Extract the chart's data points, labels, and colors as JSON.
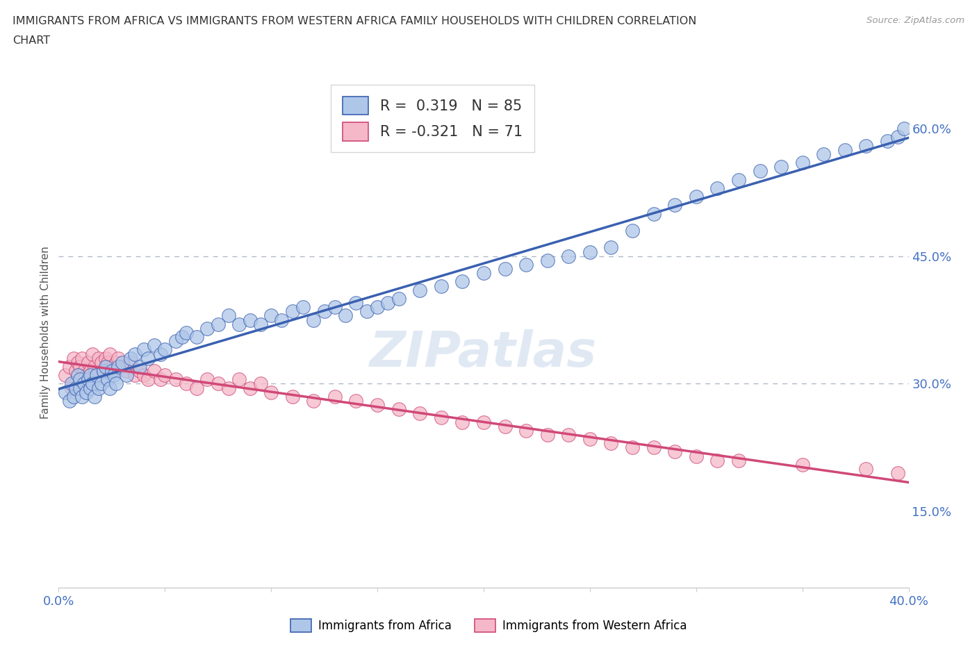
{
  "title_line1": "IMMIGRANTS FROM AFRICA VS IMMIGRANTS FROM WESTERN AFRICA FAMILY HOUSEHOLDS WITH CHILDREN CORRELATION",
  "title_line2": "CHART",
  "source": "Source: ZipAtlas.com",
  "ylabel": "Family Households with Children",
  "xlim": [
    0.0,
    0.4
  ],
  "ylim": [
    0.06,
    0.66
  ],
  "xticks": [
    0.0,
    0.05,
    0.1,
    0.15,
    0.2,
    0.25,
    0.3,
    0.35,
    0.4
  ],
  "ytick_positions": [
    0.15,
    0.3,
    0.45,
    0.6
  ],
  "ytick_labels": [
    "15.0%",
    "30.0%",
    "45.0%",
    "60.0%"
  ],
  "hlines": [
    0.45,
    0.3
  ],
  "series1_color": "#aec6e8",
  "series2_color": "#f4b8c8",
  "trend1_color": "#3a60b0",
  "trend2_color": "#d04878",
  "legend_r1": "R =  0.319   N = 85",
  "legend_r2": "R = -0.321   N = 71",
  "watermark": "ZIPatlas",
  "scatter1_x": [
    0.003,
    0.005,
    0.006,
    0.007,
    0.008,
    0.009,
    0.01,
    0.01,
    0.011,
    0.012,
    0.013,
    0.014,
    0.015,
    0.015,
    0.016,
    0.017,
    0.018,
    0.019,
    0.02,
    0.021,
    0.022,
    0.023,
    0.024,
    0.025,
    0.026,
    0.027,
    0.028,
    0.03,
    0.032,
    0.034,
    0.036,
    0.038,
    0.04,
    0.042,
    0.045,
    0.048,
    0.05,
    0.055,
    0.058,
    0.06,
    0.065,
    0.07,
    0.075,
    0.08,
    0.085,
    0.09,
    0.095,
    0.1,
    0.105,
    0.11,
    0.115,
    0.12,
    0.125,
    0.13,
    0.135,
    0.14,
    0.145,
    0.15,
    0.155,
    0.16,
    0.17,
    0.18,
    0.19,
    0.2,
    0.21,
    0.22,
    0.23,
    0.24,
    0.25,
    0.26,
    0.27,
    0.28,
    0.29,
    0.3,
    0.31,
    0.32,
    0.33,
    0.34,
    0.35,
    0.36,
    0.37,
    0.38,
    0.39,
    0.395,
    0.398
  ],
  "scatter1_y": [
    0.29,
    0.28,
    0.3,
    0.285,
    0.295,
    0.31,
    0.295,
    0.305,
    0.285,
    0.3,
    0.29,
    0.305,
    0.295,
    0.31,
    0.3,
    0.285,
    0.31,
    0.295,
    0.3,
    0.315,
    0.32,
    0.305,
    0.295,
    0.315,
    0.31,
    0.3,
    0.32,
    0.325,
    0.31,
    0.33,
    0.335,
    0.32,
    0.34,
    0.33,
    0.345,
    0.335,
    0.34,
    0.35,
    0.355,
    0.36,
    0.355,
    0.365,
    0.37,
    0.38,
    0.37,
    0.375,
    0.37,
    0.38,
    0.375,
    0.385,
    0.39,
    0.375,
    0.385,
    0.39,
    0.38,
    0.395,
    0.385,
    0.39,
    0.395,
    0.4,
    0.41,
    0.415,
    0.42,
    0.43,
    0.435,
    0.44,
    0.445,
    0.45,
    0.455,
    0.46,
    0.48,
    0.5,
    0.51,
    0.52,
    0.53,
    0.54,
    0.55,
    0.555,
    0.56,
    0.57,
    0.575,
    0.58,
    0.585,
    0.59,
    0.6
  ],
  "scatter2_x": [
    0.003,
    0.005,
    0.006,
    0.007,
    0.008,
    0.009,
    0.01,
    0.01,
    0.011,
    0.012,
    0.013,
    0.014,
    0.015,
    0.016,
    0.017,
    0.018,
    0.019,
    0.02,
    0.021,
    0.022,
    0.023,
    0.024,
    0.025,
    0.026,
    0.027,
    0.028,
    0.03,
    0.032,
    0.034,
    0.036,
    0.038,
    0.04,
    0.042,
    0.045,
    0.048,
    0.05,
    0.055,
    0.06,
    0.065,
    0.07,
    0.075,
    0.08,
    0.085,
    0.09,
    0.095,
    0.1,
    0.11,
    0.12,
    0.13,
    0.14,
    0.15,
    0.16,
    0.17,
    0.18,
    0.19,
    0.2,
    0.21,
    0.22,
    0.23,
    0.24,
    0.25,
    0.26,
    0.27,
    0.28,
    0.29,
    0.3,
    0.31,
    0.32,
    0.35,
    0.38,
    0.395
  ],
  "scatter2_y": [
    0.31,
    0.32,
    0.295,
    0.33,
    0.315,
    0.325,
    0.32,
    0.305,
    0.33,
    0.315,
    0.31,
    0.325,
    0.315,
    0.335,
    0.32,
    0.31,
    0.33,
    0.325,
    0.315,
    0.33,
    0.325,
    0.335,
    0.32,
    0.315,
    0.325,
    0.33,
    0.32,
    0.315,
    0.325,
    0.31,
    0.315,
    0.31,
    0.305,
    0.315,
    0.305,
    0.31,
    0.305,
    0.3,
    0.295,
    0.305,
    0.3,
    0.295,
    0.305,
    0.295,
    0.3,
    0.29,
    0.285,
    0.28,
    0.285,
    0.28,
    0.275,
    0.27,
    0.265,
    0.26,
    0.255,
    0.255,
    0.25,
    0.245,
    0.24,
    0.24,
    0.235,
    0.23,
    0.225,
    0.225,
    0.22,
    0.215,
    0.21,
    0.21,
    0.205,
    0.2,
    0.195
  ]
}
